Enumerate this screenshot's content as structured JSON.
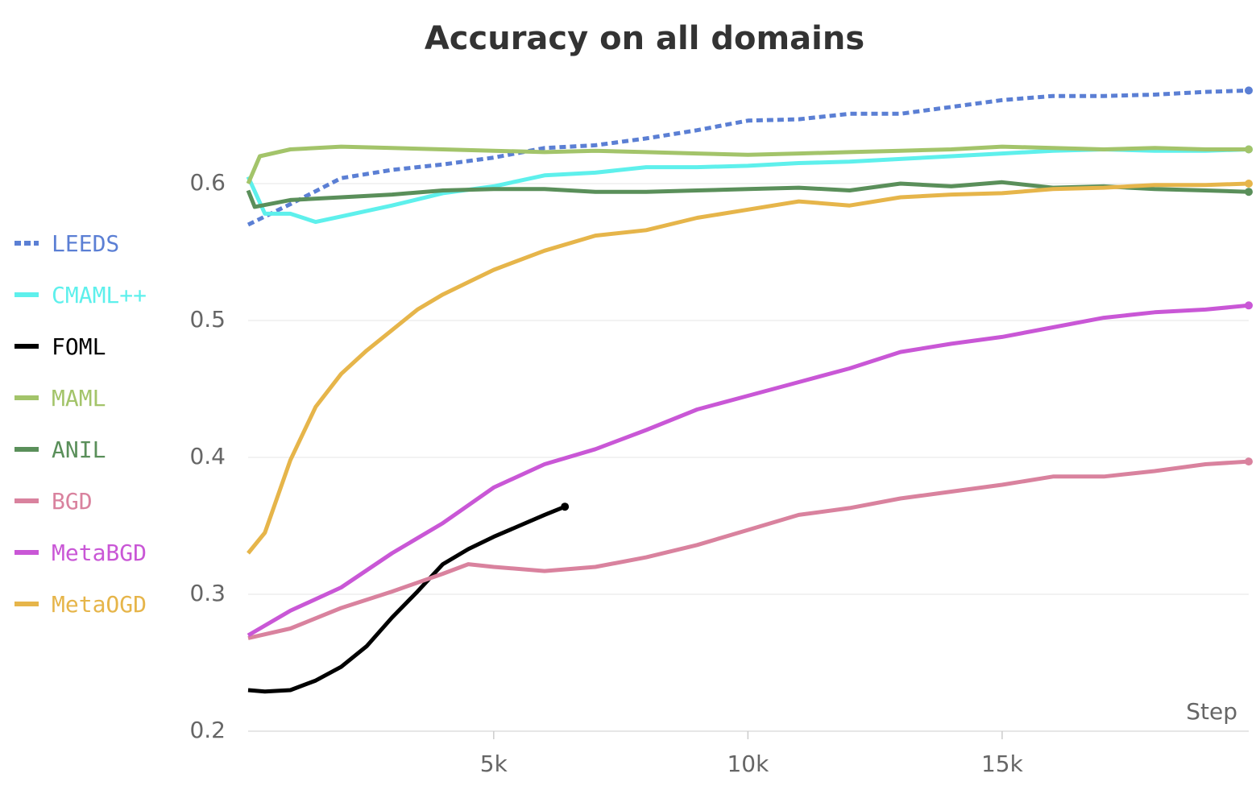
{
  "chart_data": {
    "type": "line",
    "title": "Accuracy on all domains",
    "x_label": "Step",
    "xlim": [
      170,
      19850
    ],
    "ylim": [
      0.2,
      0.7
    ],
    "xticks": [
      {
        "value": 5000,
        "label": "5k"
      },
      {
        "value": 10000,
        "label": "10k"
      },
      {
        "value": 15000,
        "label": "15k"
      }
    ],
    "yticks": [
      0.2,
      0.3,
      0.4,
      0.5,
      0.6
    ],
    "grid": true,
    "legend": "left",
    "series": [
      {
        "name": "LEEDS",
        "color": "#5b7fd4",
        "dashed": true,
        "x": [
          170,
          1000,
          2000,
          3000,
          4000,
          5000,
          6000,
          7000,
          8000,
          9000,
          10000,
          11000,
          12000,
          13000,
          14000,
          15000,
          16000,
          17000,
          18000,
          19000,
          19850
        ],
        "values": [
          0.57,
          0.585,
          0.604,
          0.61,
          0.614,
          0.619,
          0.626,
          0.628,
          0.633,
          0.639,
          0.646,
          0.647,
          0.651,
          0.651,
          0.656,
          0.661,
          0.664,
          0.664,
          0.665,
          0.667,
          0.668
        ]
      },
      {
        "name": "CMAML++",
        "color": "#5ef0ec",
        "x": [
          170,
          500,
          1000,
          1500,
          2000,
          3000,
          4000,
          5000,
          6000,
          7000,
          8000,
          9000,
          10000,
          11000,
          12000,
          13000,
          14000,
          15000,
          16000,
          17000,
          18000,
          19000,
          19850
        ],
        "values": [
          0.605,
          0.578,
          0.578,
          0.572,
          0.576,
          0.584,
          0.593,
          0.598,
          0.606,
          0.608,
          0.612,
          0.612,
          0.613,
          0.615,
          0.616,
          0.618,
          0.62,
          0.622,
          0.624,
          0.625,
          0.624,
          0.624,
          0.625
        ]
      },
      {
        "name": "FOML",
        "color": "#000000",
        "x": [
          170,
          500,
          1000,
          1500,
          2000,
          2500,
          3000,
          3500,
          4000,
          4500,
          5000,
          5500,
          6000,
          6400
        ],
        "values": [
          0.23,
          0.229,
          0.23,
          0.237,
          0.247,
          0.262,
          0.283,
          0.302,
          0.322,
          0.333,
          0.342,
          0.35,
          0.358,
          0.364
        ]
      },
      {
        "name": "MAML",
        "color": "#a3c46a",
        "x": [
          170,
          400,
          1000,
          2000,
          3000,
          4000,
          5000,
          6000,
          7000,
          8000,
          9000,
          10000,
          11000,
          12000,
          13000,
          14000,
          15000,
          16000,
          17000,
          18000,
          19000,
          19850
        ],
        "values": [
          0.6,
          0.62,
          0.625,
          0.627,
          0.626,
          0.625,
          0.624,
          0.623,
          0.624,
          0.623,
          0.622,
          0.621,
          0.622,
          0.623,
          0.624,
          0.625,
          0.627,
          0.626,
          0.625,
          0.626,
          0.625,
          0.625
        ]
      },
      {
        "name": "ANIL",
        "color": "#5a8f5a",
        "x": [
          170,
          300,
          1000,
          2000,
          3000,
          4000,
          5000,
          6000,
          7000,
          8000,
          9000,
          10000,
          11000,
          12000,
          13000,
          14000,
          15000,
          16000,
          17000,
          18000,
          19000,
          19850
        ],
        "values": [
          0.595,
          0.583,
          0.588,
          0.59,
          0.592,
          0.595,
          0.596,
          0.596,
          0.594,
          0.594,
          0.595,
          0.596,
          0.597,
          0.595,
          0.6,
          0.598,
          0.601,
          0.597,
          0.598,
          0.596,
          0.595,
          0.594
        ]
      },
      {
        "name": "BGD",
        "color": "#d9829e",
        "x": [
          170,
          1000,
          2000,
          3000,
          4000,
          4500,
          5000,
          6000,
          7000,
          8000,
          9000,
          10000,
          11000,
          12000,
          13000,
          14000,
          15000,
          16000,
          17000,
          18000,
          19000,
          19850
        ],
        "values": [
          0.268,
          0.275,
          0.29,
          0.302,
          0.315,
          0.322,
          0.32,
          0.317,
          0.32,
          0.327,
          0.336,
          0.347,
          0.358,
          0.363,
          0.37,
          0.375,
          0.38,
          0.386,
          0.386,
          0.39,
          0.395,
          0.397
        ]
      },
      {
        "name": "MetaBGD",
        "color": "#c957d6",
        "x": [
          170,
          1000,
          2000,
          3000,
          4000,
          5000,
          6000,
          7000,
          8000,
          9000,
          10000,
          11000,
          12000,
          13000,
          14000,
          15000,
          16000,
          17000,
          18000,
          19000,
          19850
        ],
        "values": [
          0.27,
          0.288,
          0.305,
          0.33,
          0.352,
          0.378,
          0.395,
          0.406,
          0.42,
          0.435,
          0.445,
          0.455,
          0.465,
          0.477,
          0.483,
          0.488,
          0.495,
          0.502,
          0.506,
          0.508,
          0.511
        ]
      },
      {
        "name": "MetaOGD",
        "color": "#e6b54a",
        "x": [
          170,
          500,
          1000,
          1500,
          2000,
          2500,
          3000,
          3500,
          4000,
          4500,
          5000,
          6000,
          7000,
          8000,
          9000,
          10000,
          11000,
          12000,
          13000,
          14000,
          15000,
          16000,
          17000,
          18000,
          19000,
          19850
        ],
        "values": [
          0.33,
          0.345,
          0.398,
          0.437,
          0.461,
          0.478,
          0.493,
          0.508,
          0.519,
          0.528,
          0.537,
          0.551,
          0.562,
          0.566,
          0.575,
          0.581,
          0.587,
          0.584,
          0.59,
          0.592,
          0.593,
          0.596,
          0.597,
          0.599,
          0.599,
          0.6
        ]
      }
    ]
  }
}
